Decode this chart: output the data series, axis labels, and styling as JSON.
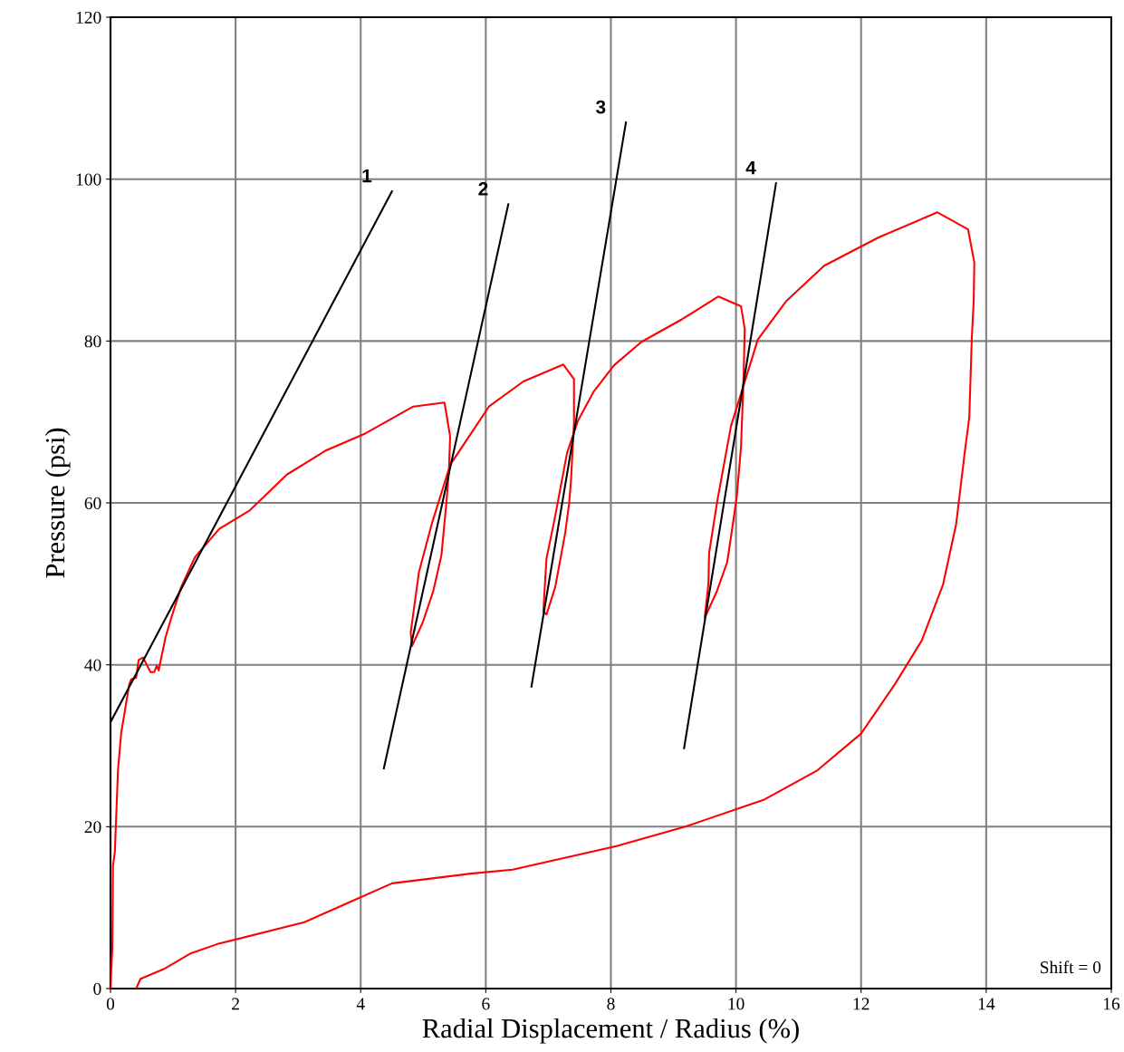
{
  "chart_data": {
    "type": "line",
    "xlabel": "Radial Displacement / Radius (%)",
    "ylabel": "Pressure (psi)",
    "xlim": [
      0,
      16
    ],
    "ylim": [
      0,
      120
    ],
    "xticks": [
      0,
      2,
      4,
      6,
      8,
      10,
      12,
      14,
      16
    ],
    "yticks": [
      0,
      20,
      40,
      60,
      80,
      100,
      120
    ],
    "grid": true,
    "marker": "none",
    "line_style": "solid",
    "series": [
      {
        "color": "#ff0000",
        "x": [
          0,
          0.03,
          0.04,
          0.07,
          0.12,
          0.17,
          0.3,
          0.33,
          0.41,
          0.45,
          0.52,
          0.64,
          0.7,
          0.74,
          0.77,
          0.88,
          0.98,
          1.13,
          1.35,
          1.74,
          2.23,
          2.82,
          3.45,
          4.08,
          4.84,
          5.34,
          5.43,
          5.41,
          5.37,
          5.29,
          5.16,
          4.99,
          4.82,
          4.8,
          4.93,
          5.14,
          5.43,
          6.05,
          6.6,
          7.24,
          7.41,
          7.41,
          7.36,
          7.33,
          7.27,
          7.11,
          6.97,
          6.92,
          6.97,
          7.1,
          7.3,
          7.47,
          7.72,
          8.05,
          8.49,
          9.14,
          9.72,
          10.08,
          10.14,
          10.12,
          10.08,
          10.01,
          9.95,
          9.86,
          9.69,
          9.5,
          9.56,
          9.57,
          9.7,
          9.92,
          10.35,
          10.8,
          11.41,
          12.28,
          13.22,
          13.71,
          13.81,
          13.8,
          13.77,
          13.73,
          13.65,
          13.52,
          13.31,
          12.97,
          12.54,
          12.0,
          11.29,
          10.44,
          9.19,
          8.09,
          6.43,
          5.76,
          4.5,
          3.77,
          3.1,
          1.71,
          1.27,
          0.85,
          0.48,
          0.41
        ],
        "values": [
          0,
          5.1,
          15.2,
          16.9,
          27.0,
          31.5,
          37.6,
          38.2,
          38.4,
          40.6,
          40.9,
          39.1,
          39.1,
          39.9,
          39.3,
          43.4,
          46.0,
          49.6,
          53.3,
          56.8,
          59.1,
          63.5,
          66.5,
          68.6,
          71.9,
          72.4,
          68.2,
          63.9,
          60.0,
          53.5,
          49.1,
          45.2,
          42.3,
          44.0,
          51.4,
          57.5,
          64.7,
          71.9,
          75.0,
          77.1,
          75.3,
          69.9,
          62.5,
          59.8,
          56.3,
          49.6,
          46.2,
          46.6,
          53.1,
          58.0,
          66.2,
          70.1,
          73.7,
          77.0,
          79.9,
          82.7,
          85.5,
          84.3,
          81.5,
          75.1,
          66.9,
          60.6,
          57.4,
          52.7,
          49.0,
          45.8,
          50.1,
          53.8,
          60.2,
          69.5,
          80.2,
          84.9,
          89.3,
          92.8,
          95.9,
          93.8,
          89.7,
          84.9,
          80.4,
          70.6,
          65.8,
          57.4,
          49.9,
          43.0,
          37.6,
          31.5,
          26.9,
          23.3,
          20.0,
          17.6,
          14.7,
          14.2,
          13.0,
          10.5,
          8.2,
          5.5,
          4.3,
          2.4,
          1.2,
          0
        ]
      },
      {
        "name": "1",
        "color": "#000000",
        "x": [
          0,
          4.5
        ],
        "values": [
          32.9,
          98.5
        ]
      },
      {
        "name": "2",
        "color": "#000000",
        "x": [
          4.37,
          6.36
        ],
        "values": [
          27.2,
          96.9
        ]
      },
      {
        "name": "3",
        "color": "#000000",
        "x": [
          6.73,
          8.24
        ],
        "values": [
          37.3,
          107.0
        ]
      },
      {
        "name": "4",
        "color": "#000000",
        "x": [
          9.17,
          10.64
        ],
        "values": [
          29.7,
          99.5
        ]
      }
    ],
    "annotations": [
      "Shift = 0"
    ]
  }
}
